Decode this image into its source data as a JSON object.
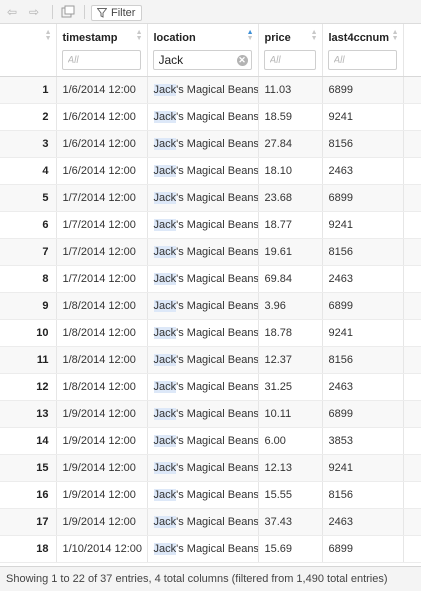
{
  "toolbar": {
    "back_icon": "arrow-left-icon",
    "forward_icon": "arrow-right-icon",
    "popout_icon": "popout-window-icon",
    "filter_label": "Filter"
  },
  "columns": [
    {
      "label": "timestamp",
      "placeholder": "All",
      "value": "",
      "sort": "none"
    },
    {
      "label": "location",
      "placeholder": "All",
      "value": "Jack",
      "sort": "ascending"
    },
    {
      "label": "price",
      "placeholder": "All",
      "value": "",
      "sort": "none"
    },
    {
      "label": "last4ccnum",
      "placeholder": "All",
      "value": "",
      "sort": "none"
    }
  ],
  "highlight_term": "Jack",
  "rows": [
    {
      "n": "1",
      "timestamp": "1/6/2014 12:00",
      "location": "Jack's Magical Beans",
      "price": "11.03",
      "last4ccnum": "6899"
    },
    {
      "n": "2",
      "timestamp": "1/6/2014 12:00",
      "location": "Jack's Magical Beans",
      "price": "18.59",
      "last4ccnum": "9241"
    },
    {
      "n": "3",
      "timestamp": "1/6/2014 12:00",
      "location": "Jack's Magical Beans",
      "price": "27.84",
      "last4ccnum": "8156"
    },
    {
      "n": "4",
      "timestamp": "1/6/2014 12:00",
      "location": "Jack's Magical Beans",
      "price": "18.10",
      "last4ccnum": "2463"
    },
    {
      "n": "5",
      "timestamp": "1/7/2014 12:00",
      "location": "Jack's Magical Beans",
      "price": "23.68",
      "last4ccnum": "6899"
    },
    {
      "n": "6",
      "timestamp": "1/7/2014 12:00",
      "location": "Jack's Magical Beans",
      "price": "18.77",
      "last4ccnum": "9241"
    },
    {
      "n": "7",
      "timestamp": "1/7/2014 12:00",
      "location": "Jack's Magical Beans",
      "price": "19.61",
      "last4ccnum": "8156"
    },
    {
      "n": "8",
      "timestamp": "1/7/2014 12:00",
      "location": "Jack's Magical Beans",
      "price": "69.84",
      "last4ccnum": "2463"
    },
    {
      "n": "9",
      "timestamp": "1/8/2014 12:00",
      "location": "Jack's Magical Beans",
      "price": "3.96",
      "last4ccnum": "6899"
    },
    {
      "n": "10",
      "timestamp": "1/8/2014 12:00",
      "location": "Jack's Magical Beans",
      "price": "18.78",
      "last4ccnum": "9241"
    },
    {
      "n": "11",
      "timestamp": "1/8/2014 12:00",
      "location": "Jack's Magical Beans",
      "price": "12.37",
      "last4ccnum": "8156"
    },
    {
      "n": "12",
      "timestamp": "1/8/2014 12:00",
      "location": "Jack's Magical Beans",
      "price": "31.25",
      "last4ccnum": "2463"
    },
    {
      "n": "13",
      "timestamp": "1/9/2014 12:00",
      "location": "Jack's Magical Beans",
      "price": "10.11",
      "last4ccnum": "6899"
    },
    {
      "n": "14",
      "timestamp": "1/9/2014 12:00",
      "location": "Jack's Magical Beans",
      "price": "6.00",
      "last4ccnum": "3853"
    },
    {
      "n": "15",
      "timestamp": "1/9/2014 12:00",
      "location": "Jack's Magical Beans",
      "price": "12.13",
      "last4ccnum": "9241"
    },
    {
      "n": "16",
      "timestamp": "1/9/2014 12:00",
      "location": "Jack's Magical Beans",
      "price": "15.55",
      "last4ccnum": "8156"
    },
    {
      "n": "17",
      "timestamp": "1/9/2014 12:00",
      "location": "Jack's Magical Beans",
      "price": "37.43",
      "last4ccnum": "2463"
    },
    {
      "n": "18",
      "timestamp": "1/10/2014 12:00",
      "location": "Jack's Magical Beans",
      "price": "15.69",
      "last4ccnum": "6899"
    }
  ],
  "status": "Showing 1 to 22 of 37 entries, 4 total columns (filtered from 1,490 total entries)"
}
